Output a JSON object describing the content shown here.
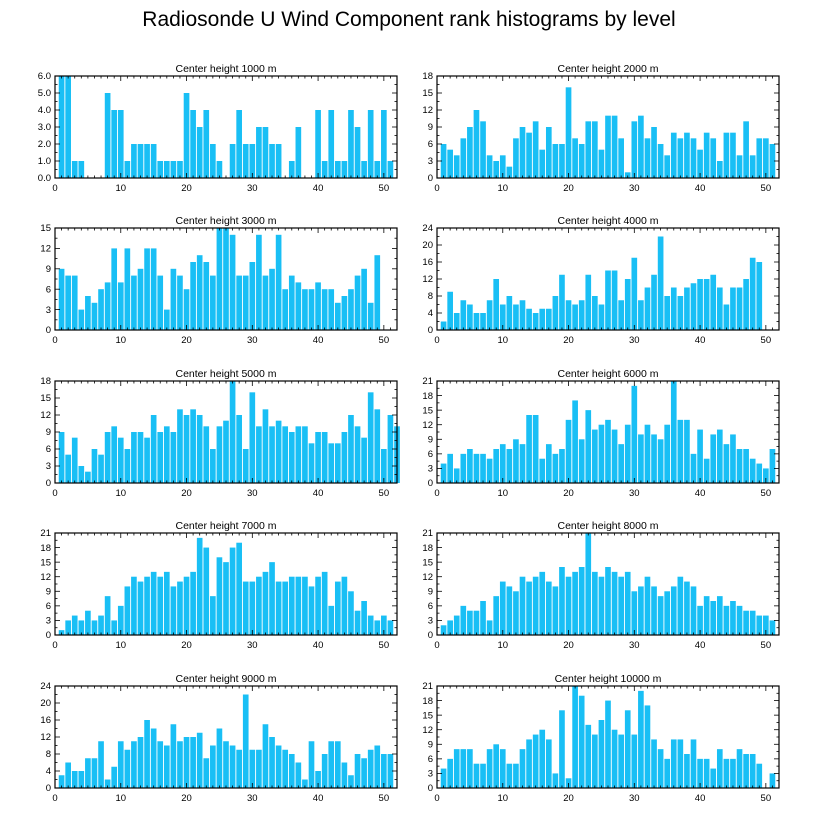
{
  "figure": {
    "title": "Radiosonde U Wind Component rank histograms by level",
    "bar_color": "#19bff5",
    "x_ticks": [
      0,
      10,
      20,
      30,
      40,
      50
    ]
  },
  "chart_data": [
    {
      "type": "bar",
      "title": "Center height 1000 m",
      "xlim": [
        0,
        52
      ],
      "ylim": [
        0,
        6
      ],
      "yticks": [
        0,
        1,
        2,
        3,
        4,
        5,
        6
      ],
      "ytick_labels": [
        "0.0",
        "1.0",
        "2.0",
        "3.0",
        "4.0",
        "5.0",
        "6.0"
      ],
      "x": [
        1,
        2,
        3,
        4,
        5,
        6,
        7,
        8,
        9,
        10,
        11,
        12,
        13,
        14,
        15,
        16,
        17,
        18,
        19,
        20,
        21,
        22,
        23,
        24,
        25,
        26,
        27,
        28,
        29,
        30,
        31,
        32,
        33,
        34,
        35,
        36,
        37,
        38,
        39,
        40,
        41,
        42,
        43,
        44,
        45,
        46,
        47,
        48,
        49,
        50,
        51,
        52
      ],
      "values": [
        6,
        6,
        1,
        1,
        0,
        0,
        0,
        5,
        4,
        4,
        1,
        2,
        2,
        2,
        2,
        1,
        1,
        1,
        1,
        5,
        4,
        3,
        4,
        2,
        1,
        0,
        2,
        4,
        2,
        2,
        3,
        3,
        2,
        2,
        0,
        1,
        3,
        0,
        0,
        4,
        1,
        4,
        1,
        1,
        4,
        3,
        1,
        4,
        1,
        4,
        1,
        0
      ]
    },
    {
      "type": "bar",
      "title": "Center height 2000 m",
      "xlim": [
        0,
        52
      ],
      "ylim": [
        0,
        18
      ],
      "yticks": [
        0,
        3,
        6,
        9,
        12,
        15,
        18
      ],
      "ytick_labels": [
        "0",
        "3",
        "6",
        "9",
        "12",
        "15",
        "18"
      ],
      "x": [
        1,
        2,
        3,
        4,
        5,
        6,
        7,
        8,
        9,
        10,
        11,
        12,
        13,
        14,
        15,
        16,
        17,
        18,
        19,
        20,
        21,
        22,
        23,
        24,
        25,
        26,
        27,
        28,
        29,
        30,
        31,
        32,
        33,
        34,
        35,
        36,
        37,
        38,
        39,
        40,
        41,
        42,
        43,
        44,
        45,
        46,
        47,
        48,
        49,
        50,
        51,
        52
      ],
      "values": [
        6,
        5,
        4,
        7,
        9,
        12,
        10,
        4,
        3,
        4,
        2,
        7,
        9,
        8,
        10,
        5,
        9,
        6,
        6,
        16,
        7,
        6,
        10,
        10,
        5,
        11,
        11,
        7,
        1,
        10,
        11,
        7,
        9,
        6,
        4,
        8,
        7,
        8,
        7,
        5,
        8,
        7,
        3,
        8,
        8,
        4,
        10,
        4,
        7,
        7,
        6,
        0
      ]
    },
    {
      "type": "bar",
      "title": "Center height 3000 m",
      "xlim": [
        0,
        52
      ],
      "ylim": [
        0,
        15
      ],
      "yticks": [
        0,
        3,
        6,
        9,
        12,
        15
      ],
      "ytick_labels": [
        "0",
        "3",
        "6",
        "9",
        "12",
        "15"
      ],
      "x": [
        1,
        2,
        3,
        4,
        5,
        6,
        7,
        8,
        9,
        10,
        11,
        12,
        13,
        14,
        15,
        16,
        17,
        18,
        19,
        20,
        21,
        22,
        23,
        24,
        25,
        26,
        27,
        28,
        29,
        30,
        31,
        32,
        33,
        34,
        35,
        36,
        37,
        38,
        39,
        40,
        41,
        42,
        43,
        44,
        45,
        46,
        47,
        48,
        49,
        50,
        51,
        52
      ],
      "values": [
        9,
        8,
        8,
        3,
        5,
        4,
        6,
        7,
        12,
        7,
        12,
        8,
        9,
        12,
        12,
        8,
        3,
        9,
        8,
        6,
        10,
        11,
        10,
        8,
        15,
        15,
        14,
        8,
        8,
        10,
        14,
        8,
        9,
        14,
        6,
        8,
        7,
        6,
        6,
        7,
        6,
        6,
        4,
        5,
        6,
        8,
        9,
        4,
        11,
        0,
        0,
        0
      ]
    },
    {
      "type": "bar",
      "title": "Center height 4000 m",
      "xlim": [
        0,
        52
      ],
      "ylim": [
        0,
        24
      ],
      "yticks": [
        0,
        4,
        8,
        12,
        16,
        20,
        24
      ],
      "ytick_labels": [
        "0",
        "4",
        "8",
        "12",
        "16",
        "20",
        "24"
      ],
      "x": [
        1,
        2,
        3,
        4,
        5,
        6,
        7,
        8,
        9,
        10,
        11,
        12,
        13,
        14,
        15,
        16,
        17,
        18,
        19,
        20,
        21,
        22,
        23,
        24,
        25,
        26,
        27,
        28,
        29,
        30,
        31,
        32,
        33,
        34,
        35,
        36,
        37,
        38,
        39,
        40,
        41,
        42,
        43,
        44,
        45,
        46,
        47,
        48,
        49,
        50,
        51,
        52
      ],
      "values": [
        2,
        9,
        4,
        7,
        6,
        4,
        4,
        7,
        12,
        6,
        8,
        6,
        7,
        5,
        4,
        5,
        5,
        8,
        13,
        7,
        6,
        7,
        13,
        8,
        6,
        14,
        14,
        7,
        12,
        17,
        7,
        10,
        13,
        22,
        8,
        10,
        8,
        10,
        11,
        12,
        12,
        13,
        10,
        6,
        10,
        10,
        12,
        17,
        16,
        0,
        0,
        0
      ]
    },
    {
      "type": "bar",
      "title": "Center height 5000 m",
      "xlim": [
        0,
        52
      ],
      "ylim": [
        0,
        18
      ],
      "yticks": [
        0,
        3,
        6,
        9,
        12,
        15,
        18
      ],
      "ytick_labels": [
        "0",
        "3",
        "6",
        "9",
        "12",
        "15",
        "18"
      ],
      "x": [
        1,
        2,
        3,
        4,
        5,
        6,
        7,
        8,
        9,
        10,
        11,
        12,
        13,
        14,
        15,
        16,
        17,
        18,
        19,
        20,
        21,
        22,
        23,
        24,
        25,
        26,
        27,
        28,
        29,
        30,
        31,
        32,
        33,
        34,
        35,
        36,
        37,
        38,
        39,
        40,
        41,
        42,
        43,
        44,
        45,
        46,
        47,
        48,
        49,
        50,
        51,
        52
      ],
      "values": [
        9,
        5,
        8,
        3,
        2,
        6,
        5,
        9,
        10,
        8,
        6,
        9,
        9,
        8,
        12,
        9,
        10,
        9,
        13,
        12,
        13,
        12,
        10,
        6,
        10,
        11,
        18,
        12,
        6,
        16,
        10,
        13,
        10,
        11,
        10,
        9,
        10,
        10,
        7,
        9,
        9,
        7,
        7,
        9,
        12,
        10,
        8,
        16,
        13,
        6,
        12,
        10
      ]
    },
    {
      "type": "bar",
      "title": "Center height 6000 m",
      "xlim": [
        0,
        52
      ],
      "ylim": [
        0,
        21
      ],
      "yticks": [
        0,
        3,
        6,
        9,
        12,
        15,
        18,
        21
      ],
      "ytick_labels": [
        "0",
        "3",
        "6",
        "9",
        "12",
        "15",
        "18",
        "21"
      ],
      "x": [
        1,
        2,
        3,
        4,
        5,
        6,
        7,
        8,
        9,
        10,
        11,
        12,
        13,
        14,
        15,
        16,
        17,
        18,
        19,
        20,
        21,
        22,
        23,
        24,
        25,
        26,
        27,
        28,
        29,
        30,
        31,
        32,
        33,
        34,
        35,
        36,
        37,
        38,
        39,
        40,
        41,
        42,
        43,
        44,
        45,
        46,
        47,
        48,
        49,
        50,
        51,
        52
      ],
      "values": [
        4,
        6,
        3,
        6,
        7,
        6,
        6,
        5,
        7,
        8,
        7,
        9,
        8,
        14,
        14,
        5,
        8,
        6,
        7,
        13,
        17,
        9,
        15,
        11,
        12,
        13,
        11,
        8,
        12,
        20,
        10,
        12,
        10,
        9,
        12,
        21,
        13,
        13,
        6,
        11,
        5,
        10,
        11,
        8,
        10,
        7,
        7,
        5,
        4,
        3,
        7,
        0
      ]
    },
    {
      "type": "bar",
      "title": "Center height 7000 m",
      "xlim": [
        0,
        52
      ],
      "ylim": [
        0,
        21
      ],
      "yticks": [
        0,
        3,
        6,
        9,
        12,
        15,
        18,
        21
      ],
      "ytick_labels": [
        "0",
        "3",
        "6",
        "9",
        "12",
        "15",
        "18",
        "21"
      ],
      "x": [
        1,
        2,
        3,
        4,
        5,
        6,
        7,
        8,
        9,
        10,
        11,
        12,
        13,
        14,
        15,
        16,
        17,
        18,
        19,
        20,
        21,
        22,
        23,
        24,
        25,
        26,
        27,
        28,
        29,
        30,
        31,
        32,
        33,
        34,
        35,
        36,
        37,
        38,
        39,
        40,
        41,
        42,
        43,
        44,
        45,
        46,
        47,
        48,
        49,
        50,
        51,
        52
      ],
      "values": [
        1,
        3,
        4,
        3,
        5,
        3,
        4,
        8,
        3,
        6,
        10,
        12,
        11,
        12,
        13,
        12,
        13,
        10,
        11,
        12,
        13,
        20,
        18,
        8,
        16,
        15,
        18,
        19,
        11,
        11,
        12,
        13,
        15,
        11,
        11,
        12,
        12,
        12,
        10,
        12,
        13,
        6,
        11,
        12,
        9,
        5,
        7,
        4,
        3,
        4,
        3,
        0
      ]
    },
    {
      "type": "bar",
      "title": "Center height 8000 m",
      "xlim": [
        0,
        52
      ],
      "ylim": [
        0,
        21
      ],
      "yticks": [
        0,
        3,
        6,
        9,
        12,
        15,
        18,
        21
      ],
      "ytick_labels": [
        "0",
        "3",
        "6",
        "9",
        "12",
        "15",
        "18",
        "21"
      ],
      "x": [
        1,
        2,
        3,
        4,
        5,
        6,
        7,
        8,
        9,
        10,
        11,
        12,
        13,
        14,
        15,
        16,
        17,
        18,
        19,
        20,
        21,
        22,
        23,
        24,
        25,
        26,
        27,
        28,
        29,
        30,
        31,
        32,
        33,
        34,
        35,
        36,
        37,
        38,
        39,
        40,
        41,
        42,
        43,
        44,
        45,
        46,
        47,
        48,
        49,
        50,
        51,
        52
      ],
      "values": [
        2,
        3,
        4,
        6,
        5,
        5,
        7,
        3,
        8,
        11,
        10,
        9,
        12,
        11,
        12,
        13,
        11,
        10,
        14,
        12,
        13,
        14,
        21,
        13,
        12,
        14,
        13,
        12,
        13,
        9,
        10,
        12,
        10,
        8,
        9,
        10,
        12,
        11,
        10,
        6,
        8,
        7,
        8,
        6,
        7,
        6,
        5,
        5,
        4,
        4,
        3,
        0
      ]
    },
    {
      "type": "bar",
      "title": "Center height 9000 m",
      "xlim": [
        0,
        52
      ],
      "ylim": [
        0,
        24
      ],
      "yticks": [
        0,
        4,
        8,
        12,
        16,
        20,
        24
      ],
      "ytick_labels": [
        "0",
        "4",
        "8",
        "12",
        "16",
        "20",
        "24"
      ],
      "x": [
        1,
        2,
        3,
        4,
        5,
        6,
        7,
        8,
        9,
        10,
        11,
        12,
        13,
        14,
        15,
        16,
        17,
        18,
        19,
        20,
        21,
        22,
        23,
        24,
        25,
        26,
        27,
        28,
        29,
        30,
        31,
        32,
        33,
        34,
        35,
        36,
        37,
        38,
        39,
        40,
        41,
        42,
        43,
        44,
        45,
        46,
        47,
        48,
        49,
        50,
        51,
        52
      ],
      "values": [
        3,
        6,
        4,
        4,
        7,
        7,
        11,
        2,
        5,
        11,
        9,
        11,
        12,
        16,
        14,
        11,
        10,
        15,
        11,
        12,
        12,
        13,
        7,
        10,
        14,
        11,
        10,
        9,
        22,
        9,
        9,
        15,
        12,
        10,
        9,
        8,
        6,
        2,
        11,
        4,
        8,
        11,
        11,
        6,
        3,
        8,
        7,
        9,
        10,
        8,
        8,
        0
      ]
    },
    {
      "type": "bar",
      "title": "Center height 10000 m",
      "xlim": [
        0,
        52
      ],
      "ylim": [
        0,
        21
      ],
      "yticks": [
        0,
        3,
        6,
        9,
        12,
        15,
        18,
        21
      ],
      "ytick_labels": [
        "0",
        "3",
        "6",
        "9",
        "12",
        "15",
        "18",
        "21"
      ],
      "x": [
        1,
        2,
        3,
        4,
        5,
        6,
        7,
        8,
        9,
        10,
        11,
        12,
        13,
        14,
        15,
        16,
        17,
        18,
        19,
        20,
        21,
        22,
        23,
        24,
        25,
        26,
        27,
        28,
        29,
        30,
        31,
        32,
        33,
        34,
        35,
        36,
        37,
        38,
        39,
        40,
        41,
        42,
        43,
        44,
        45,
        46,
        47,
        48,
        49,
        50,
        51,
        52
      ],
      "values": [
        4,
        6,
        8,
        8,
        8,
        5,
        5,
        8,
        9,
        8,
        5,
        5,
        8,
        10,
        11,
        12,
        10,
        3,
        16,
        2,
        21,
        19,
        13,
        11,
        14,
        18,
        12,
        11,
        16,
        11,
        20,
        17,
        10,
        8,
        6,
        10,
        10,
        7,
        10,
        6,
        6,
        4,
        8,
        6,
        6,
        8,
        7,
        7,
        5,
        0,
        3,
        0
      ]
    }
  ]
}
